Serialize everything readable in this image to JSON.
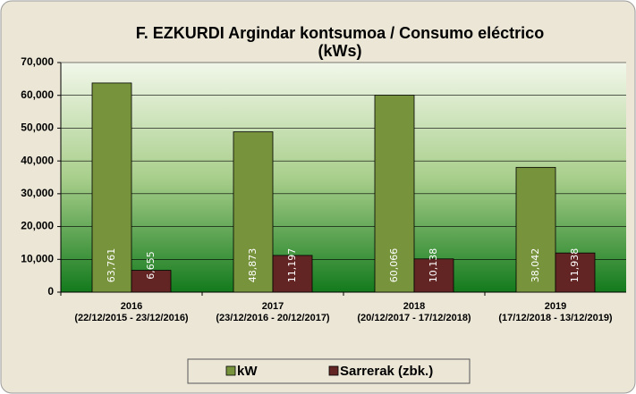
{
  "chart_data": {
    "type": "bar",
    "title": [
      "F. EZKURDI Argindar kontsumoa / Consumo eléctrico",
      "(kWs)"
    ],
    "categories": [
      "2016",
      "2017",
      "2018",
      "2019"
    ],
    "periods": [
      "(22/12/2015 - 23/12/2016)",
      "(23/12/2016 - 20/12/2017)",
      "(20/12/2017 - 17/12/2018)",
      "(17/12/2018 - 13/12/2019)"
    ],
    "series": [
      {
        "name": "kW",
        "color": "#77933c",
        "values": [
          63761,
          48873,
          60066,
          38042
        ],
        "value_labels": [
          "63,761",
          "48,873",
          "60,066",
          "38,042"
        ]
      },
      {
        "name": "Sarrerak (zbk.)",
        "color": "#632523",
        "values": [
          6655,
          11197,
          10138,
          11938
        ],
        "value_labels": [
          "6,655",
          "11,197",
          "10,138",
          "11,938"
        ]
      }
    ],
    "ylim": [
      0,
      70000
    ],
    "yticks": [
      0,
      {
        "value": 10000,
        "label": "10,000"
      },
      {
        "value": 20000,
        "label": "20,000"
      },
      {
        "value": 30000,
        "label": "30,000"
      },
      {
        "value": 40000,
        "label": "40,000"
      },
      {
        "value": 50000,
        "label": "50,000"
      },
      {
        "value": 60000,
        "label": "60,000"
      },
      {
        "value": 70000,
        "label": "70,000"
      }
    ],
    "grid": true,
    "legend": "bottom"
  }
}
